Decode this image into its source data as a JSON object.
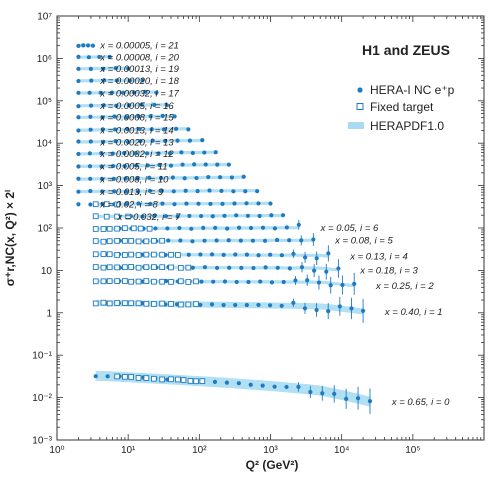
{
  "chart_data": {
    "type": "scatter",
    "title": "H1 and ZEUS",
    "xlabel": "Q² (GeV²)",
    "ylabel": "σ⁺r,NC(x, Q²) × 2ⁱ",
    "x_scale": "log",
    "y_scale": "log",
    "xlim": [
      1,
      1000000
    ],
    "ylim": [
      0.001,
      10000000
    ],
    "x_ticks": [
      "10⁰",
      "10¹",
      "10²",
      "10³",
      "10⁴",
      "10⁵"
    ],
    "y_ticks": [
      "10⁻³",
      "10⁻²",
      "10⁻¹",
      "1",
      "10",
      "10²",
      "10³",
      "10⁴",
      "10⁵",
      "10⁶",
      "10⁷"
    ],
    "legend": {
      "position": "top-right",
      "entries": [
        {
          "label": "HERA-I NC e⁺p",
          "marker": "filled-circle",
          "color": "#1f7ac0"
        },
        {
          "label": "Fixed target",
          "marker": "open-square",
          "color": "#1f7ac0"
        },
        {
          "label": "HERAPDF1.0",
          "marker": "band",
          "color": "#a9dcf2"
        }
      ]
    },
    "colors": {
      "data": "#1f7ac0",
      "band": "#a9dcf2",
      "axis": "#333333"
    },
    "series": [
      {
        "name": "HERA-I NC e⁺p",
        "marker": "filled-circle"
      },
      {
        "name": "Fixed target",
        "marker": "open-square"
      },
      {
        "name": "HERAPDF1.0",
        "marker": "band"
      }
    ],
    "bins": [
      {
        "label": "x = 0.00005, i = 21",
        "x_bj": 5e-05,
        "i": 21,
        "q2_range": [
          2.0,
          3.2
        ],
        "value": 2000000,
        "fixed": []
      },
      {
        "label": "x = 0.00008, i = 20",
        "x_bj": 8e-05,
        "i": 20,
        "q2_range": [
          2.0,
          5.5
        ],
        "value": 1050000,
        "fixed": []
      },
      {
        "label": "x = 0.00013, i = 19",
        "x_bj": 0.00013,
        "i": 19,
        "q2_range": [
          2.0,
          10
        ],
        "value": 560000,
        "fixed": []
      },
      {
        "label": "x = 0.00020, i = 18",
        "x_bj": 0.0002,
        "i": 18,
        "q2_range": [
          2.0,
          16
        ],
        "value": 290000,
        "fixed": []
      },
      {
        "label": "x = 0.00032, i = 17",
        "x_bj": 0.00032,
        "i": 17,
        "q2_range": [
          2.0,
          25
        ],
        "value": 150000,
        "fixed": []
      },
      {
        "label": "x = 0.0005, i = 16",
        "x_bj": 0.0005,
        "i": 16,
        "q2_range": [
          2.0,
          35
        ],
        "value": 75000,
        "fixed": []
      },
      {
        "label": "x = 0.0008, i = 15",
        "x_bj": 0.0008,
        "i": 15,
        "q2_range": [
          2.0,
          45
        ],
        "value": 40000,
        "fixed": []
      },
      {
        "label": "x = 0.0013, i = 14",
        "x_bj": 0.0013,
        "i": 14,
        "q2_range": [
          2.0,
          70
        ],
        "value": 20000,
        "fixed": []
      },
      {
        "label": "x = 0.0020, i = 13",
        "x_bj": 0.002,
        "i": 13,
        "q2_range": [
          2.0,
          110
        ],
        "value": 10500,
        "fixed": []
      },
      {
        "label": "x = 0.0032, i = 12",
        "x_bj": 0.0032,
        "i": 12,
        "q2_range": [
          2.0,
          170
        ],
        "value": 5500,
        "fixed": []
      },
      {
        "label": "x = 0.005, i = 11",
        "x_bj": 0.005,
        "i": 11,
        "q2_range": [
          2.0,
          260
        ],
        "value": 2800,
        "fixed": []
      },
      {
        "label": "x = 0.008, i = 10",
        "x_bj": 0.008,
        "i": 10,
        "q2_range": [
          2.0,
          420
        ],
        "value": 1400,
        "fixed": []
      },
      {
        "label": "x = 0.013, i = 9",
        "x_bj": 0.013,
        "i": 9,
        "q2_range": [
          2.0,
          650
        ],
        "value": 720,
        "fixed": []
      },
      {
        "label": "x = 0.02, i = 8",
        "x_bj": 0.02,
        "i": 8,
        "q2_range": [
          2.0,
          1000
        ],
        "value": 360,
        "fixed": [
          3.5,
          5,
          7
        ]
      },
      {
        "label": "x = 0.032, i = 7",
        "x_bj": 0.032,
        "i": 7,
        "q2_range": [
          3.5,
          1500
        ],
        "value": 185,
        "fixed": [
          3.5,
          5,
          7,
          10
        ]
      },
      {
        "label": "x = 0.05, i = 6",
        "x_bj": 0.05,
        "i": 6,
        "q2_range": [
          3.5,
          2500
        ],
        "value": 95,
        "fixed": [
          3.5,
          4.5,
          5.5,
          7,
          9,
          12,
          15,
          20
        ]
      },
      {
        "label": "x = 0.08, i = 5",
        "x_bj": 0.08,
        "i": 5,
        "q2_range": [
          3.5,
          4000
        ],
        "value": 48,
        "fixed": [
          3.5,
          4.5,
          5.5,
          7,
          9,
          11,
          14,
          18,
          23,
          30
        ]
      },
      {
        "label": "x = 0.13, i = 4",
        "x_bj": 0.13,
        "i": 4,
        "q2_range": [
          3.5,
          6500
        ],
        "value": 24,
        "fixed": [
          3.5,
          4.5,
          5.5,
          7,
          9,
          11,
          14,
          18,
          23,
          30,
          40,
          50
        ]
      },
      {
        "label": "x = 0.18, i = 3",
        "x_bj": 0.18,
        "i": 3,
        "q2_range": [
          3.5,
          9000
        ],
        "value": 12,
        "fixed": [
          3.5,
          4.5,
          5.5,
          7,
          9,
          11,
          14,
          18,
          23,
          30,
          40,
          55,
          70
        ]
      },
      {
        "label": "x = 0.25, i = 2",
        "x_bj": 0.25,
        "i": 2,
        "q2_range": [
          3.5,
          15000
        ],
        "value": 5.6,
        "fixed": [
          3.5,
          4.5,
          5.5,
          7,
          9,
          11,
          14,
          18,
          23,
          30,
          40,
          55,
          70,
          90
        ]
      },
      {
        "label": "x = 0.40, i = 1",
        "x_bj": 0.4,
        "i": 1,
        "q2_range": [
          3.5,
          20000
        ],
        "value": 1.75,
        "fixed": [
          3.5,
          4.5,
          5.5,
          7,
          9,
          11,
          14,
          18,
          23,
          30,
          40,
          55,
          70,
          90
        ]
      },
      {
        "label": "x = 0.65, i = 0",
        "x_bj": 0.65,
        "i": 0,
        "q2_range": [
          3.5,
          25000
        ],
        "value": 0.036,
        "fixed": [
          7,
          9,
          11,
          14,
          18,
          23,
          30,
          40,
          50,
          60,
          75,
          90,
          110
        ]
      }
    ]
  }
}
